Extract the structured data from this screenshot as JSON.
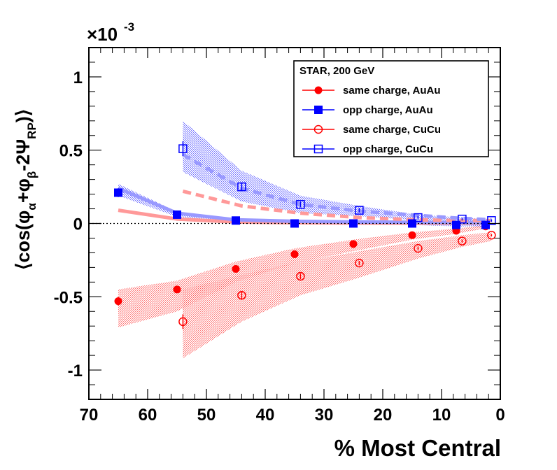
{
  "chart_data": {
    "type": "scatter",
    "title": "",
    "xlabel": "% Most Central",
    "ylabel_parts": {
      "open": "⟨cos(φ",
      "alpha": "α",
      "plus": "+φ",
      "beta": "β",
      "minus2psi": "-2Ψ",
      "rp": "RP",
      "close": ")⟩"
    },
    "y_multiplier": {
      "base": "×10",
      "exponent": "-3"
    },
    "xlim": [
      70,
      0
    ],
    "ylim": [
      -1.2,
      1.2
    ],
    "x_ticks": [
      70,
      60,
      50,
      40,
      30,
      20,
      10,
      0
    ],
    "x_tick_labels": [
      "70",
      "60",
      "50",
      "40",
      "30",
      "20",
      "10",
      "0"
    ],
    "y_ticks": [
      -1,
      -0.5,
      0,
      0.5,
      1
    ],
    "y_tick_labels": [
      "-1",
      "-0.5",
      "0",
      "0.5",
      "1"
    ],
    "legend": {
      "title": "STAR,  200 GeV",
      "position": "top-right",
      "entries": [
        {
          "label": "same charge, AuAu",
          "color": "#ff0000",
          "marker": "filled-circle"
        },
        {
          "label": "opp charge, AuAu",
          "color": "#0000ff",
          "marker": "filled-square"
        },
        {
          "label": "same charge, CuCu",
          "color": "#ff0000",
          "marker": "open-circle"
        },
        {
          "label": "opp charge, CuCu",
          "color": "#0000ff",
          "marker": "open-square"
        }
      ]
    },
    "series": [
      {
        "name": "same charge, AuAu",
        "color": "#ff0000",
        "marker": "filled-circle",
        "x": [
          65,
          55,
          45,
          35,
          25,
          15,
          7.5,
          2.5
        ],
        "y": [
          -0.53,
          -0.45,
          -0.31,
          -0.21,
          -0.14,
          -0.08,
          -0.05,
          -0.02
        ],
        "err": [
          0.03,
          0.02,
          0.015,
          0.01,
          0.01,
          0.008,
          0.006,
          0.005
        ]
      },
      {
        "name": "opp charge, AuAu",
        "color": "#0000ff",
        "marker": "filled-square",
        "x": [
          65,
          55,
          45,
          35,
          25,
          15,
          7.5,
          2.5
        ],
        "y": [
          0.21,
          0.06,
          0.02,
          0.0,
          0.0,
          0.0,
          -0.01,
          -0.01
        ],
        "err": [
          0.03,
          0.02,
          0.015,
          0.01,
          0.01,
          0.008,
          0.006,
          0.005
        ]
      },
      {
        "name": "same charge, CuCu",
        "color": "#ff0000",
        "marker": "open-circle",
        "x": [
          54,
          44,
          34,
          24,
          14,
          6.5,
          1.5
        ],
        "y": [
          -0.67,
          -0.49,
          -0.36,
          -0.27,
          -0.17,
          -0.12,
          -0.08
        ],
        "err": [
          0.05,
          0.03,
          0.02,
          0.015,
          0.012,
          0.01,
          0.008
        ]
      },
      {
        "name": "opp charge, CuCu",
        "color": "#0000ff",
        "marker": "open-square",
        "x": [
          54,
          44,
          34,
          24,
          14,
          6.5,
          1.5
        ],
        "y": [
          0.51,
          0.25,
          0.13,
          0.09,
          0.04,
          0.03,
          0.02
        ],
        "err": [
          0.05,
          0.03,
          0.02,
          0.015,
          0.012,
          0.01,
          0.008
        ]
      }
    ],
    "model_curves": [
      {
        "name": "AuAu same-charge model (solid)",
        "color": "#ff9999",
        "style": "solid",
        "x": [
          65,
          55,
          45,
          35,
          25,
          15,
          7.5,
          2.5
        ],
        "y": [
          0.09,
          0.03,
          0.01,
          0.005,
          0.003,
          0.002,
          0.001,
          0.001
        ]
      },
      {
        "name": "AuAu opp-charge model (solid)",
        "color": "#9999ff",
        "style": "solid",
        "x": [
          65,
          55,
          45,
          35,
          25,
          15,
          7.5,
          2.5
        ],
        "y": [
          0.24,
          0.07,
          0.025,
          0.015,
          0.01,
          0.008,
          0.006,
          0.005
        ]
      },
      {
        "name": "CuCu same-charge model (dashed)",
        "color": "#ff9999",
        "style": "dashed",
        "x": [
          54,
          44,
          34,
          24,
          14,
          6.5,
          1.5
        ],
        "y": [
          0.22,
          0.12,
          0.07,
          0.04,
          0.025,
          0.02,
          0.02
        ]
      },
      {
        "name": "CuCu opp-charge model (dashed)",
        "color": "#9999ff",
        "style": "dashed",
        "x": [
          54,
          44,
          34,
          24,
          14,
          6.5,
          1.5
        ],
        "y": [
          0.47,
          0.24,
          0.13,
          0.085,
          0.055,
          0.035,
          0.025
        ]
      }
    ],
    "bands": [
      {
        "name": "AuAu same-charge systematic band",
        "color": "#ff3333",
        "x": [
          65,
          55,
          45,
          35,
          25,
          15,
          7.5,
          2.5
        ],
        "upper": [
          -0.45,
          -0.39,
          -0.26,
          -0.17,
          -0.11,
          -0.06,
          -0.035,
          -0.01
        ],
        "lower": [
          -0.71,
          -0.6,
          -0.4,
          -0.27,
          -0.19,
          -0.11,
          -0.07,
          -0.035
        ]
      },
      {
        "name": "AuAu opp-charge systematic band",
        "color": "#3333ff",
        "x": [
          65,
          55,
          45,
          35,
          25,
          15,
          7.5,
          2.5
        ],
        "upper": [
          0.27,
          0.08,
          0.035,
          0.015,
          0.01,
          0.01,
          0.005,
          0.0
        ],
        "lower": [
          0.19,
          0.045,
          0.01,
          -0.005,
          -0.01,
          -0.01,
          -0.02,
          -0.02
        ]
      },
      {
        "name": "CuCu same-charge systematic band",
        "color": "#ff3333",
        "x": [
          54,
          44,
          34,
          24,
          14,
          6.5,
          1.5
        ],
        "upper": [
          -0.45,
          -0.35,
          -0.26,
          -0.19,
          -0.12,
          -0.08,
          -0.06
        ],
        "lower": [
          -0.92,
          -0.67,
          -0.49,
          -0.37,
          -0.24,
          -0.16,
          -0.12
        ]
      },
      {
        "name": "CuCu opp-charge systematic band",
        "color": "#3333ff",
        "x": [
          54,
          44,
          34,
          24,
          14,
          6.5,
          1.5
        ],
        "upper": [
          0.7,
          0.36,
          0.19,
          0.12,
          0.06,
          0.04,
          0.03
        ],
        "lower": [
          0.35,
          0.15,
          0.07,
          0.05,
          0.02,
          0.015,
          0.01
        ]
      }
    ],
    "reference_line": {
      "y": 0,
      "style": "dotted"
    }
  }
}
